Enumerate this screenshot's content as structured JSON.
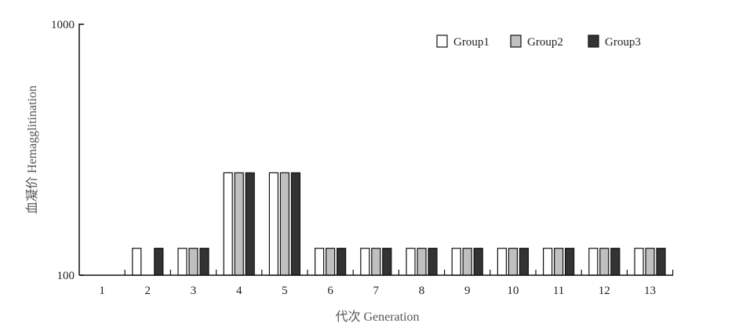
{
  "chart_data": {
    "type": "bar",
    "title": "",
    "xlabel": "代次 Generation",
    "ylabel": "血凝价 Hemagglitination",
    "y_scale": "log",
    "ylim": [
      100,
      1000
    ],
    "y_ticks": [
      "100",
      "1000"
    ],
    "grid": false,
    "legend_position": "top-right",
    "categories": [
      "1",
      "2",
      "3",
      "4",
      "5",
      "6",
      "7",
      "8",
      "9",
      "10",
      "11",
      "12",
      "13"
    ],
    "series": [
      {
        "name": "Group1",
        "color": "#ffffff",
        "values": [
          100,
          128,
          128,
          256,
          256,
          128,
          128,
          128,
          128,
          128,
          128,
          128,
          128
        ]
      },
      {
        "name": "Group2",
        "color": "#c0c0c0",
        "values": [
          100,
          100,
          128,
          256,
          256,
          128,
          128,
          128,
          128,
          128,
          128,
          128,
          128
        ]
      },
      {
        "name": "Group3",
        "color": "#333333",
        "values": [
          100,
          128,
          128,
          256,
          256,
          128,
          128,
          128,
          128,
          128,
          128,
          128,
          128
        ]
      }
    ]
  }
}
